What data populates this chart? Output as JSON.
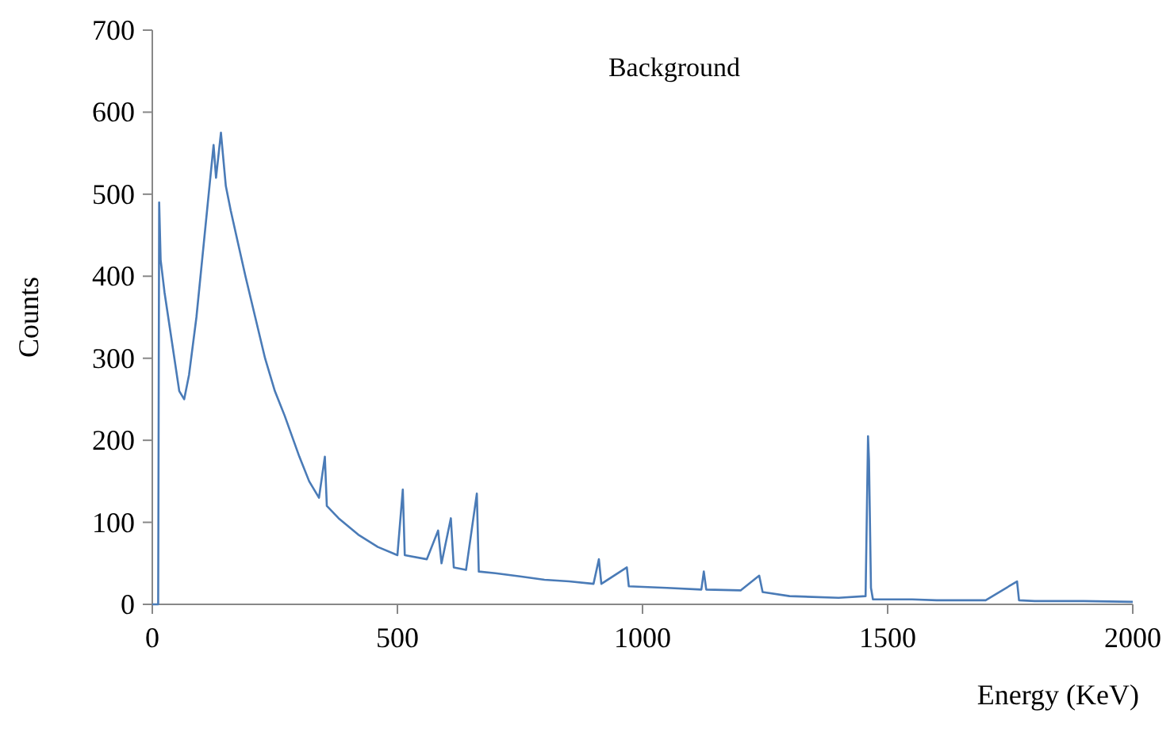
{
  "chart_data": {
    "type": "line",
    "title": "Background",
    "xlabel": "Energy (KeV)",
    "ylabel": "Counts",
    "xlim": [
      0,
      2000
    ],
    "xticks": [
      0,
      500,
      1000,
      1500,
      2000
    ],
    "ylim": [
      0,
      700
    ],
    "yticks": [
      0,
      100,
      200,
      300,
      400,
      500,
      600,
      700
    ],
    "marker": "none",
    "line_style": "solid",
    "x": [
      0,
      12,
      14,
      17,
      25,
      40,
      55,
      65,
      75,
      90,
      105,
      115,
      125,
      130,
      140,
      150,
      160,
      175,
      190,
      210,
      230,
      250,
      270,
      300,
      320,
      340,
      352,
      356,
      380,
      420,
      460,
      500,
      511,
      515,
      560,
      583,
      590,
      609,
      615,
      640,
      662,
      666,
      700,
      750,
      800,
      850,
      900,
      911,
      916,
      968,
      972,
      1050,
      1120,
      1125,
      1130,
      1200,
      1238,
      1245,
      1300,
      1400,
      1455,
      1460,
      1462,
      1466,
      1470,
      1550,
      1600,
      1700,
      1764,
      1768,
      1800,
      1900,
      2000
    ],
    "series": [
      {
        "color": "#4a7bb7",
        "values": [
          0,
          0,
          490,
          420,
          380,
          320,
          260,
          250,
          280,
          350,
          440,
          500,
          560,
          520,
          575,
          510,
          480,
          440,
          400,
          350,
          300,
          260,
          230,
          180,
          150,
          130,
          180,
          120,
          105,
          85,
          70,
          60,
          140,
          60,
          55,
          90,
          50,
          105,
          45,
          42,
          135,
          40,
          38,
          34,
          30,
          28,
          25,
          55,
          25,
          45,
          22,
          20,
          18,
          40,
          18,
          17,
          35,
          15,
          10,
          8,
          10,
          205,
          175,
          20,
          6,
          6,
          5,
          5,
          28,
          5,
          4,
          4,
          3
        ]
      }
    ]
  }
}
